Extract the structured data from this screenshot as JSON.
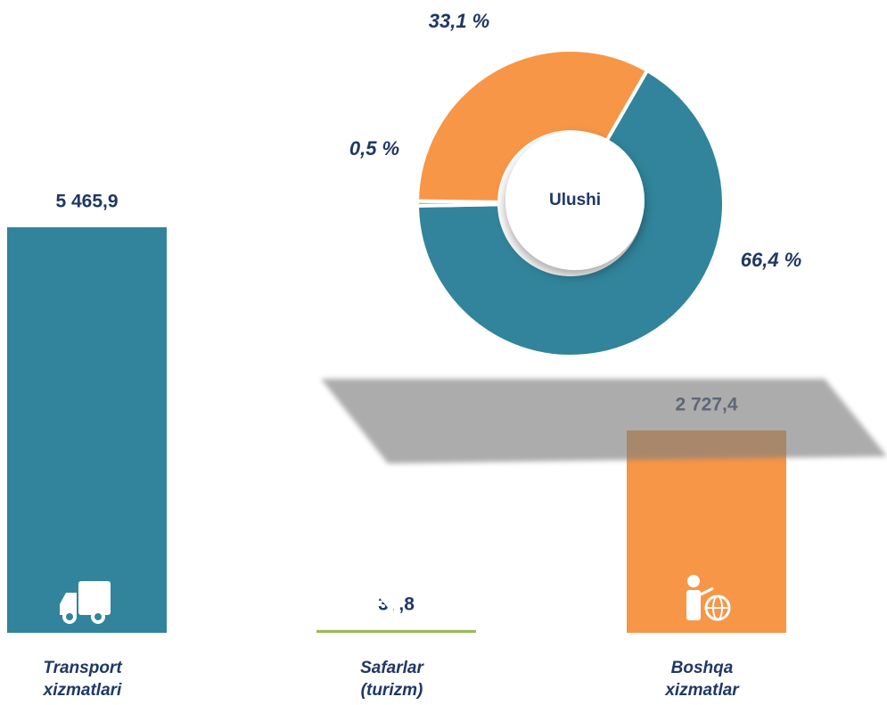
{
  "chart_data": [
    {
      "type": "bar",
      "categories": [
        "Transport xizmatlari",
        "Safarlar (turizm)",
        "Boshqa xizmatlar"
      ],
      "values": [
        5465.9,
        37.8,
        2727.4
      ],
      "value_labels": [
        "5 465,9",
        "37,8",
        "2 727,4"
      ],
      "colors": [
        "#31849b",
        "#9bbb59",
        "#f79646"
      ]
    },
    {
      "type": "pie",
      "title": "Ulushi",
      "categories": [
        "Transport xizmatlari",
        "Safarlar (turizm)",
        "Boshqa xizmatlar"
      ],
      "values": [
        66.4,
        0.5,
        33.1
      ],
      "value_labels": [
        "66,4 %",
        "0,5 %",
        "33,1 %"
      ],
      "colors": [
        "#31849b",
        "#9bbb59",
        "#f79646"
      ]
    }
  ]
}
